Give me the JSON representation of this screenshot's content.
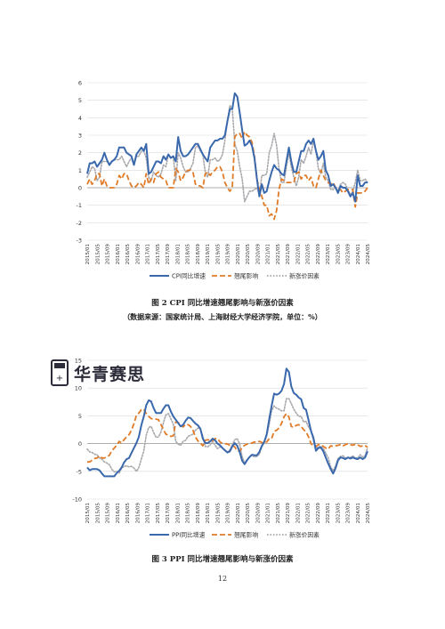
{
  "captions": {
    "figure2_title": "图 2 CPI 同比增速翘尾影响与新涨价因素",
    "figure2_source": "（数据来源：国家统计局、上海财经大学经济学院，单位：%）",
    "figure3_title": "图 3 PPI 同比增速翘尾影响与新涨价因素"
  },
  "page_number": "12",
  "watermark": {
    "text": "华青赛思",
    "icon": "calculator-logo-icon"
  },
  "colors": {
    "yoy": "#3a68ad",
    "carry": "#e07b28",
    "new": "#a8a8ac",
    "grid": "#d9d9d9",
    "axis": "#555555"
  },
  "chart_data": [
    {
      "id": "cpi",
      "type": "line",
      "title": "",
      "ylim": [
        -3,
        6
      ],
      "yticks": [
        -3,
        -2,
        -1,
        0,
        1,
        2,
        3,
        4,
        5,
        6
      ],
      "grid": "horizontal",
      "legend_position": "bottom",
      "x_ticks": [
        "2015/01",
        "2015/05",
        "2015/09",
        "2016/01",
        "2016/05",
        "2016/09",
        "2017/01",
        "2017/05",
        "2017/09",
        "2018/01",
        "2018/05",
        "2018/09",
        "2019/01",
        "2019/05",
        "2019/09",
        "2020/01",
        "2020/05",
        "2020/09",
        "2021/01",
        "2021/05",
        "2021/09",
        "2022/01",
        "2022/05",
        "2022/09",
        "2023/01",
        "2023/05",
        "2023/09",
        "2024/01",
        "2024/05"
      ],
      "series": [
        {
          "name": "CPI同比增速",
          "style": "solid",
          "color": "#3a68ad",
          "values": [
            0.8,
            1.4,
            1.4,
            1.5,
            1.2,
            1.4,
            1.6,
            2.0,
            1.6,
            1.3,
            1.5,
            1.6,
            1.8,
            2.3,
            2.3,
            2.3,
            2.0,
            1.9,
            1.8,
            1.3,
            1.9,
            2.1,
            2.3,
            2.1,
            2.5,
            0.8,
            0.9,
            1.2,
            1.5,
            1.5,
            1.4,
            1.8,
            1.6,
            1.9,
            1.7,
            1.8,
            1.5,
            2.9,
            2.1,
            1.8,
            1.8,
            1.9,
            2.1,
            2.3,
            2.5,
            2.5,
            2.2,
            1.9,
            1.7,
            1.5,
            2.3,
            2.5,
            2.7,
            2.7,
            2.8,
            2.8,
            3.0,
            3.8,
            4.5,
            4.5,
            5.4,
            5.2,
            4.3,
            3.3,
            2.4,
            2.5,
            2.7,
            2.4,
            1.7,
            0.5,
            -0.5,
            0.2,
            -0.3,
            -0.2,
            0.4,
            0.9,
            1.3,
            1.1,
            1.0,
            0.8,
            0.7,
            1.5,
            2.3,
            1.5,
            0.9,
            0.9,
            1.5,
            2.1,
            2.1,
            2.5,
            2.7,
            2.5,
            2.8,
            2.1,
            1.6,
            1.8,
            2.1,
            1.0,
            0.7,
            0.1,
            0.2,
            0.0,
            -0.3,
            0.1,
            0.0,
            0.0,
            -0.2,
            -0.5,
            -0.3,
            -0.8,
            0.7,
            0.1,
            0.1,
            0.3,
            0.3
          ]
        },
        {
          "name": "翘尾影响",
          "style": "dashed",
          "color": "#e07b28",
          "values": [
            0.2,
            0.5,
            0.2,
            0.4,
            0.8,
            0.8,
            0.1,
            0.5,
            0.1,
            0.0,
            0.0,
            0.0,
            0.2,
            0.7,
            0.5,
            0.8,
            0.8,
            0.4,
            0.1,
            0.0,
            0.1,
            0.3,
            0.2,
            0.0,
            0.8,
            0.2,
            0.5,
            0.3,
            0.8,
            0.9,
            0.6,
            0.5,
            0.4,
            0.0,
            0.0,
            0.0,
            1.1,
            0.9,
            0.4,
            0.6,
            0.9,
            1.0,
            1.0,
            0.9,
            0.2,
            0.1,
            0.1,
            0.0,
            0.8,
            0.9,
            0.7,
            0.9,
            1.0,
            1.2,
            1.2,
            0.9,
            0.3,
            0.0,
            -0.2,
            0.0,
            2.9,
            3.1,
            3.1,
            2.8,
            3.2,
            3.0,
            2.9,
            2.6,
            1.8,
            0.5,
            -0.1,
            -0.5,
            -1.0,
            -1.0,
            -1.6,
            -1.5,
            -1.8,
            -1.3,
            -0.1,
            0.5,
            0.4,
            0.3,
            0.3,
            0.3,
            0.3,
            0.8,
            0.9,
            0.5,
            0.7,
            0.7,
            0.4,
            0.6,
            0.1,
            0.0,
            0.5,
            1.0,
            0.7,
            0.4,
            0.3,
            0.2,
            0.3,
            0.0,
            -0.1,
            -0.1,
            -0.3,
            -0.2,
            -0.1,
            -0.1,
            -0.1,
            -1.1,
            -0.3,
            -0.3,
            -0.3,
            -0.2,
            0.0
          ]
        },
        {
          "name": "新涨价因素",
          "style": "dotted",
          "color": "#a8a8ac",
          "values": [
            0.6,
            0.9,
            1.2,
            1.1,
            0.4,
            0.6,
            1.5,
            1.5,
            1.5,
            1.3,
            1.5,
            1.6,
            1.6,
            1.6,
            1.8,
            1.5,
            1.2,
            1.5,
            1.7,
            1.3,
            1.8,
            1.8,
            2.1,
            2.1,
            1.7,
            0.6,
            0.4,
            0.9,
            0.7,
            0.6,
            0.8,
            1.3,
            1.2,
            1.9,
            1.7,
            1.8,
            0.4,
            2.0,
            1.7,
            1.2,
            0.9,
            0.9,
            1.1,
            1.4,
            2.3,
            2.4,
            2.1,
            1.9,
            0.9,
            0.6,
            1.6,
            1.6,
            1.7,
            1.5,
            1.6,
            1.9,
            2.7,
            3.8,
            4.7,
            4.5,
            2.5,
            2.1,
            1.2,
            0.5,
            -0.8,
            -0.5,
            -0.2,
            -0.2,
            -0.1,
            0.0,
            -0.4,
            0.7,
            0.7,
            0.8,
            2.0,
            2.4,
            3.1,
            2.4,
            1.1,
            0.3,
            0.3,
            1.2,
            2.0,
            1.2,
            0.6,
            0.1,
            0.6,
            1.6,
            1.4,
            1.8,
            2.3,
            1.9,
            2.7,
            2.1,
            1.1,
            0.8,
            1.4,
            0.6,
            0.4,
            -0.1,
            -0.1,
            0.0,
            -0.2,
            0.2,
            0.3,
            0.2,
            -0.1,
            -0.4,
            -0.2,
            0.3,
            1.0,
            0.4,
            0.4,
            0.5,
            0.3
          ]
        }
      ]
    },
    {
      "id": "ppi",
      "type": "line",
      "title": "",
      "ylim": [
        -10,
        15
      ],
      "yticks": [
        -10,
        -5,
        0,
        5,
        10,
        15
      ],
      "grid": "horizontal",
      "legend_position": "bottom",
      "x_ticks": [
        "2015/01",
        "2015/05",
        "2015/09",
        "2016/01",
        "2016/05",
        "2016/09",
        "2017/01",
        "2017/05",
        "2017/09",
        "2018/01",
        "2018/05",
        "2018/09",
        "2019/01",
        "2019/05",
        "2019/09",
        "2020/01",
        "2020/05",
        "2020/09",
        "2021/01",
        "2021/05",
        "2021/09",
        "2022/01",
        "2022/05",
        "2022/09",
        "2023/01",
        "2023/05",
        "2023/09",
        "2024/01",
        "2024/05"
      ],
      "series": [
        {
          "name": "PPI同比增速",
          "style": "solid",
          "color": "#3a68ad",
          "values": [
            -4.3,
            -4.8,
            -4.6,
            -4.6,
            -4.6,
            -4.8,
            -5.4,
            -5.9,
            -5.9,
            -5.9,
            -5.9,
            -5.9,
            -5.3,
            -4.9,
            -4.3,
            -3.4,
            -2.8,
            -2.6,
            -1.7,
            -0.8,
            0.1,
            1.2,
            3.3,
            4.9,
            6.9,
            7.8,
            7.6,
            6.4,
            5.5,
            5.5,
            5.5,
            6.3,
            6.9,
            6.9,
            5.8,
            4.9,
            4.3,
            3.7,
            3.1,
            3.4,
            4.1,
            4.7,
            4.6,
            4.1,
            3.6,
            3.3,
            2.7,
            0.9,
            0.1,
            0.1,
            0.4,
            0.9,
            0.6,
            0.0,
            -0.3,
            -0.8,
            -1.2,
            -1.6,
            -1.4,
            -0.5,
            0.1,
            -0.4,
            -1.5,
            -3.1,
            -3.7,
            -3.0,
            -2.4,
            -2.0,
            -2.1,
            -2.1,
            -1.5,
            -0.4,
            0.3,
            1.7,
            4.4,
            6.8,
            9.0,
            8.8,
            9.0,
            9.5,
            10.7,
            13.5,
            12.9,
            10.3,
            9.1,
            8.8,
            8.3,
            8.0,
            6.4,
            6.1,
            4.2,
            2.3,
            0.9,
            -1.3,
            -0.8,
            -0.7,
            -1.4,
            -2.5,
            -3.6,
            -4.6,
            -5.4,
            -4.4,
            -3.0,
            -2.5,
            -2.6,
            -2.8,
            -2.5,
            -2.7,
            -2.5,
            -2.7,
            -2.8,
            -2.5,
            -2.8,
            -2.5,
            -1.4
          ]
        },
        {
          "name": "翘尾影响",
          "style": "dashed",
          "color": "#e07b28",
          "values": [
            -3.3,
            -3.3,
            -3.0,
            -2.7,
            -2.6,
            -2.2,
            -2.6,
            -2.6,
            -2.4,
            -2.1,
            -1.3,
            -0.8,
            -0.3,
            0.4,
            0.1,
            0.7,
            1.2,
            1.6,
            2.4,
            3.6,
            5.1,
            5.5,
            6.1,
            6.2,
            5.4,
            4.9,
            4.5,
            4.4,
            4.4,
            4.3,
            3.4,
            2.5,
            1.7,
            1.5,
            1.3,
            1.4,
            3.9,
            3.8,
            3.4,
            3.0,
            3.5,
            3.4,
            3.1,
            2.4,
            1.2,
            0.5,
            0.1,
            -0.4,
            0.6,
            0.7,
            0.6,
            0.5,
            0.9,
            0.9,
            0.3,
            0.0,
            0.0,
            -0.1,
            -0.3,
            -0.3,
            -0.6,
            -1.3,
            -1.4,
            -0.7,
            -0.3,
            -0.1,
            0.0,
            0.1,
            0.3,
            0.2,
            0.4,
            0.2,
            0.1,
            0.3,
            0.9,
            0.9,
            2.2,
            2.4,
            2.8,
            3.6,
            4.8,
            5.4,
            4.8,
            3.1,
            2.9,
            3.3,
            3.4,
            3.1,
            2.5,
            2.1,
            1.2,
            0.0,
            -0.4,
            -0.5,
            -0.2,
            -0.2,
            -0.5,
            -0.8,
            -1.0,
            -0.4,
            -0.5,
            -0.4,
            -0.3,
            -0.2,
            -0.4,
            -0.2,
            0.0,
            -0.2,
            -0.3,
            -0.1,
            -0.2,
            -0.5,
            -0.4,
            -0.3,
            -0.7
          ]
        },
        {
          "name": "新涨价因素",
          "style": "dotted",
          "color": "#a8a8ac",
          "values": [
            -1.0,
            -1.5,
            -1.6,
            -1.9,
            -2.0,
            -2.6,
            -2.8,
            -3.3,
            -3.5,
            -3.8,
            -4.6,
            -5.1,
            -5.0,
            -5.3,
            -4.4,
            -4.1,
            -4.0,
            -4.2,
            -4.1,
            -4.4,
            -5.0,
            -4.3,
            -2.8,
            -1.3,
            1.5,
            2.9,
            3.1,
            2.0,
            1.1,
            1.2,
            2.1,
            3.8,
            5.2,
            5.4,
            4.5,
            3.5,
            0.4,
            -0.1,
            -0.3,
            0.4,
            0.6,
            1.3,
            1.5,
            1.7,
            2.4,
            2.8,
            2.6,
            1.3,
            -0.5,
            -0.6,
            -0.2,
            0.4,
            -0.3,
            -0.9,
            -0.6,
            -0.8,
            -1.2,
            -1.5,
            -1.1,
            -0.2,
            0.7,
            0.9,
            -0.1,
            -2.4,
            -3.4,
            -2.9,
            -2.4,
            -2.1,
            -2.4,
            -2.3,
            -1.9,
            -0.6,
            0.2,
            1.4,
            3.5,
            5.9,
            6.8,
            6.4,
            6.2,
            5.9,
            5.9,
            8.1,
            8.1,
            7.2,
            6.2,
            5.5,
            4.9,
            4.9,
            3.9,
            4.0,
            3.0,
            2.3,
            1.3,
            -0.8,
            -0.6,
            -0.5,
            -0.9,
            -1.7,
            -2.6,
            -4.2,
            -4.9,
            -4.0,
            -2.7,
            -2.3,
            -2.2,
            -2.6,
            -2.5,
            -2.5,
            -2.2,
            -2.6,
            -2.6,
            -2.0,
            -2.4,
            -2.2,
            -0.7
          ]
        }
      ]
    }
  ]
}
